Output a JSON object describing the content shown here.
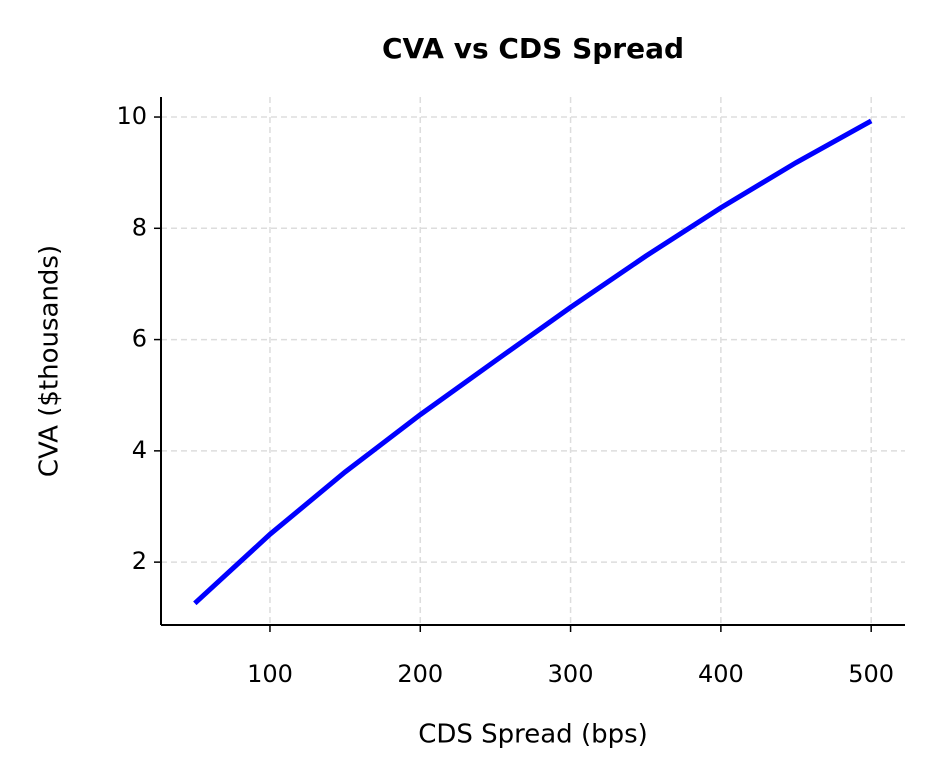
{
  "chart_data": {
    "type": "line",
    "title": "CVA vs CDS Spread",
    "x_label": "CDS Spread (bps)",
    "y_label": "CVA ($thousands)",
    "x": [
      50,
      100,
      150,
      200,
      250,
      300,
      350,
      400,
      450,
      500
    ],
    "series": [
      {
        "name": "CVA",
        "color": "#0000ff",
        "values": [
          1.26,
          2.5,
          3.62,
          4.65,
          5.62,
          6.58,
          7.5,
          8.37,
          9.18,
          9.93
        ]
      }
    ],
    "xlim": [
      27.5,
      522.5
    ],
    "ylim": [
      0.87,
      10.36
    ],
    "xticks": [
      100,
      200,
      300,
      400,
      500
    ],
    "yticks": [
      2,
      4,
      6,
      8,
      10
    ],
    "grid": true
  }
}
